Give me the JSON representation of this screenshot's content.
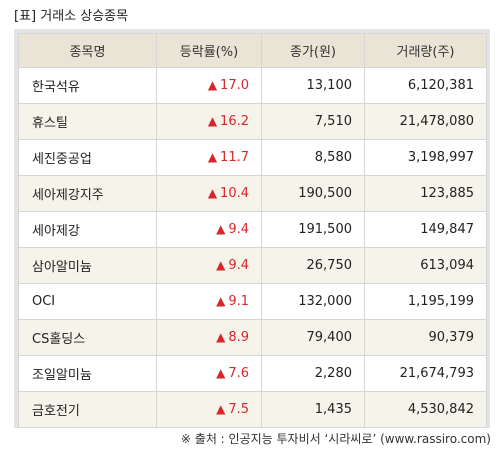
{
  "title": "[표] 거래소 상승종목",
  "table": {
    "headers": [
      "종목명",
      "등락률(%)",
      "종가(원)",
      "거래량(주)"
    ],
    "up_icon": "up-triangle-icon",
    "up_glyph": "▲",
    "up_color": "#d8272a",
    "header_bg": "#e9e4d5",
    "shaded_row_bg": "#f6f3ea",
    "rows": [
      {
        "name": "한국석유",
        "rate": "17.0",
        "price": "13,100",
        "volume": "6,120,381"
      },
      {
        "name": "휴스틸",
        "rate": "16.2",
        "price": "7,510",
        "volume": "21,478,080"
      },
      {
        "name": "세진중공업",
        "rate": "11.7",
        "price": "8,580",
        "volume": "3,198,997"
      },
      {
        "name": "세아제강지주",
        "rate": "10.4",
        "price": "190,500",
        "volume": "123,885"
      },
      {
        "name": "세아제강",
        "rate": "9.4",
        "price": "191,500",
        "volume": "149,847"
      },
      {
        "name": "삼아알미늄",
        "rate": "9.4",
        "price": "26,750",
        "volume": "613,094"
      },
      {
        "name": "OCI",
        "rate": "9.1",
        "price": "132,000",
        "volume": "1,195,199"
      },
      {
        "name": "CS홀딩스",
        "rate": "8.9",
        "price": "79,400",
        "volume": "90,379"
      },
      {
        "name": "조일알미늄",
        "rate": "7.6",
        "price": "2,280",
        "volume": "21,674,793"
      },
      {
        "name": "금호전기",
        "rate": "7.5",
        "price": "1,435",
        "volume": "4,530,842"
      }
    ]
  },
  "source": "※ 출처 : 인공지능 투자비서 ‘시라씨로’ (www.rassiro.com)"
}
